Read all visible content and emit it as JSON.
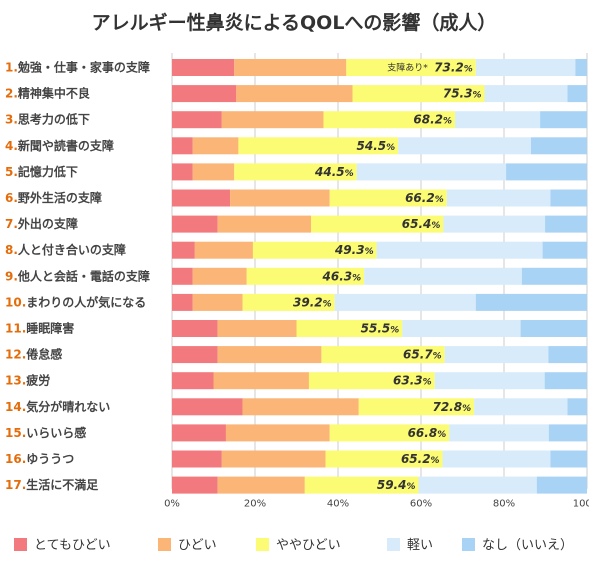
{
  "chart_data": {
    "type": "bar",
    "orientation": "horizontal",
    "stacked": true,
    "title": "アレルギー性鼻炎によるQOLへの影響（成人）",
    "categories": [
      {
        "num": "1.",
        "label": "勉強・仕事・家事の支障"
      },
      {
        "num": "2.",
        "label": "精神集中不良"
      },
      {
        "num": "3.",
        "label": "思考力の低下"
      },
      {
        "num": "4.",
        "label": "新聞や読書の支障"
      },
      {
        "num": "5.",
        "label": "記憶力低下"
      },
      {
        "num": "6.",
        "label": "野外生活の支障"
      },
      {
        "num": "7.",
        "label": "外出の支障"
      },
      {
        "num": "8.",
        "label": "人と付き合いの支障"
      },
      {
        "num": "9.",
        "label": "他人と会話・電話の支障"
      },
      {
        "num": "10.",
        "label": "まわりの人が気になる"
      },
      {
        "num": "11.",
        "label": "睡眠障害"
      },
      {
        "num": "12.",
        "label": "倦怠感"
      },
      {
        "num": "13.",
        "label": "疲労"
      },
      {
        "num": "14.",
        "label": "気分が晴れない"
      },
      {
        "num": "15.",
        "label": "いらいら感"
      },
      {
        "num": "16.",
        "label": "ゆううつ"
      },
      {
        "num": "17.",
        "label": "生活に不満足"
      }
    ],
    "series": [
      {
        "name": "とてもひどい",
        "color": "#f2797d",
        "values": [
          15,
          15.5,
          12,
          5,
          5,
          14,
          11,
          5.5,
          5,
          5,
          11,
          11,
          10,
          17,
          13,
          12,
          11
        ]
      },
      {
        "name": "ひどい",
        "color": "#fbb577",
        "values": [
          27,
          28,
          24.5,
          11,
          10,
          24,
          22.5,
          14,
          13,
          12,
          19,
          25,
          23,
          28,
          25,
          25,
          21
        ]
      },
      {
        "name": "ややひどい",
        "color": "#fbfb74",
        "values": [
          31.2,
          31.8,
          31.7,
          38.5,
          29.5,
          28.2,
          31.9,
          29.8,
          28.3,
          22.2,
          25.5,
          29.7,
          30.3,
          27.8,
          28.8,
          28.2,
          27.4
        ]
      },
      {
        "name": "軽い",
        "color": "#d7ebfa",
        "values": [
          24,
          20,
          20.5,
          32,
          36,
          25,
          24.5,
          40,
          38,
          34,
          28.5,
          25,
          26.5,
          22.5,
          24,
          26,
          28.5
        ]
      },
      {
        "name": "なし（いいえ）",
        "color": "#a9d3f5",
        "values": [
          2.8,
          4.7,
          11.3,
          13.5,
          19.5,
          8.8,
          10.1,
          10.7,
          15.7,
          26.8,
          16,
          9.3,
          10.2,
          4.7,
          9.2,
          8.8,
          12.1
        ]
      }
    ],
    "totals_label": [
      "73.2",
      "75.3",
      "68.2",
      "54.5",
      "44.5",
      "66.2",
      "65.4",
      "49.3",
      "46.3",
      "39.2",
      "55.5",
      "65.7",
      "63.3",
      "72.8",
      "66.8",
      "65.2",
      "59.4"
    ],
    "percent_sign": "%",
    "annotation": "支障あり*",
    "xlim": [
      0,
      100
    ],
    "xticks": [
      "0%",
      "20%",
      "40%",
      "60%",
      "80%",
      "100%"
    ],
    "grid": true,
    "legend_position": "bottom"
  }
}
